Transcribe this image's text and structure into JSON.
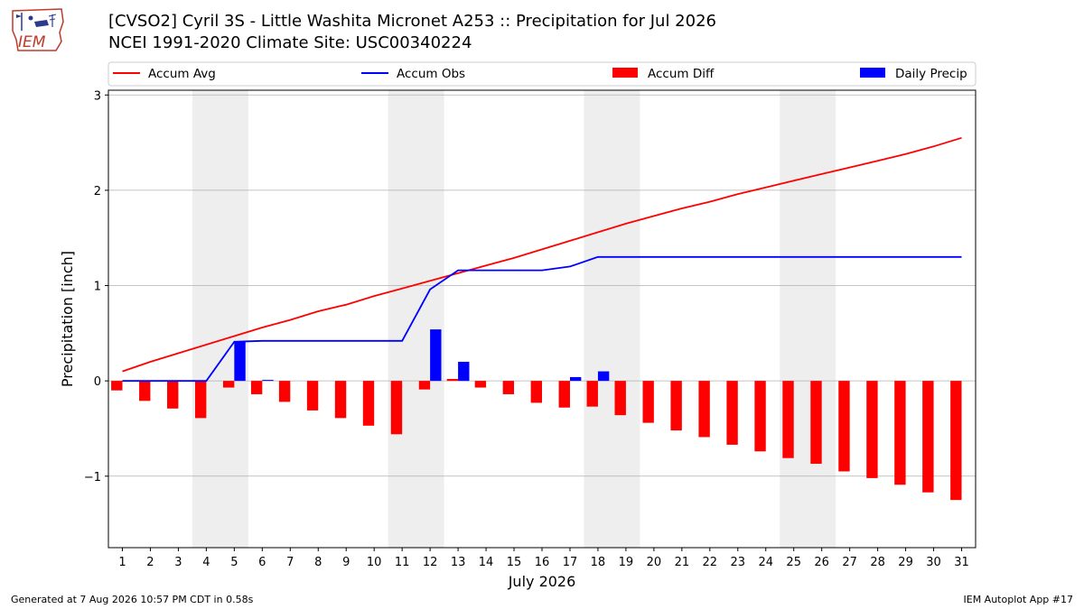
{
  "header": {
    "title_line1": "[CVSO2] Cyril 3S - Little Washita Micronet A253 :: Precipitation for Jul 2026",
    "title_line2": "NCEI 1991-2020 Climate Site: USC00340224",
    "logo_text": "IEM"
  },
  "footer": {
    "generated": "Generated at 7 Aug 2026 10:57 PM CDT in 0.58s",
    "app": "IEM Autoplot App #17"
  },
  "chart_data": {
    "type": "bar",
    "xlabel": "July 2026",
    "ylabel": "Precipitation [inch]",
    "ylim": [
      -1.75,
      3.05
    ],
    "xlim": [
      0.5,
      31.5
    ],
    "yticks": [
      {
        "value": 3,
        "label": "3"
      },
      {
        "value": 2,
        "label": "2"
      },
      {
        "value": 1,
        "label": "1"
      },
      {
        "value": 0,
        "label": "0"
      },
      {
        "value": -1,
        "label": "−1"
      }
    ],
    "grid": "horizontal",
    "legend_placement": "top",
    "weekend_bands": [
      [
        3.5,
        5.5
      ],
      [
        10.5,
        12.5
      ],
      [
        17.5,
        19.5
      ],
      [
        24.5,
        26.5
      ]
    ],
    "days": [
      1,
      2,
      3,
      4,
      5,
      6,
      7,
      8,
      9,
      10,
      11,
      12,
      13,
      14,
      15,
      16,
      17,
      18,
      19,
      20,
      21,
      22,
      23,
      24,
      25,
      26,
      27,
      28,
      29,
      30,
      31
    ],
    "series": [
      {
        "name": "Accum Avg",
        "kind": "line",
        "color": "#ff0000",
        "values": [
          0.1,
          0.2,
          0.29,
          0.38,
          0.47,
          0.56,
          0.64,
          0.73,
          0.8,
          0.89,
          0.97,
          1.05,
          1.13,
          1.21,
          1.29,
          1.38,
          1.47,
          1.56,
          1.65,
          1.73,
          1.81,
          1.88,
          1.96,
          2.03,
          2.1,
          2.17,
          2.24,
          2.31,
          2.38,
          2.46,
          2.55
        ]
      },
      {
        "name": "Accum Obs",
        "kind": "line",
        "color": "#0000ff",
        "values": [
          0.0,
          0.0,
          0.0,
          0.0,
          0.41,
          0.42,
          0.42,
          0.42,
          0.42,
          0.42,
          0.42,
          0.96,
          1.16,
          1.16,
          1.16,
          1.16,
          1.2,
          1.3,
          1.3,
          1.3,
          1.3,
          1.3,
          1.3,
          1.3,
          1.3,
          1.3,
          1.3,
          1.3,
          1.3,
          1.3,
          1.3
        ]
      },
      {
        "name": "Accum Diff",
        "kind": "bar",
        "color": "#ff0000",
        "values": [
          -0.1,
          -0.21,
          -0.29,
          -0.39,
          -0.07,
          -0.14,
          -0.22,
          -0.31,
          -0.39,
          -0.47,
          -0.56,
          -0.09,
          0.02,
          -0.07,
          -0.14,
          -0.23,
          -0.28,
          -0.27,
          -0.36,
          -0.44,
          -0.52,
          -0.59,
          -0.67,
          -0.74,
          -0.81,
          -0.87,
          -0.95,
          -1.02,
          -1.09,
          -1.17,
          -1.25
        ]
      },
      {
        "name": "Daily Precip",
        "kind": "bar",
        "color": "#0000ff",
        "values": [
          0,
          0,
          0,
          0,
          0.41,
          0.01,
          0,
          0,
          0,
          0,
          0,
          0.54,
          0.2,
          0,
          0,
          0,
          0.04,
          0.1,
          0,
          0,
          0,
          0,
          0,
          0,
          0,
          0,
          0,
          0,
          0,
          0,
          0
        ]
      }
    ]
  }
}
